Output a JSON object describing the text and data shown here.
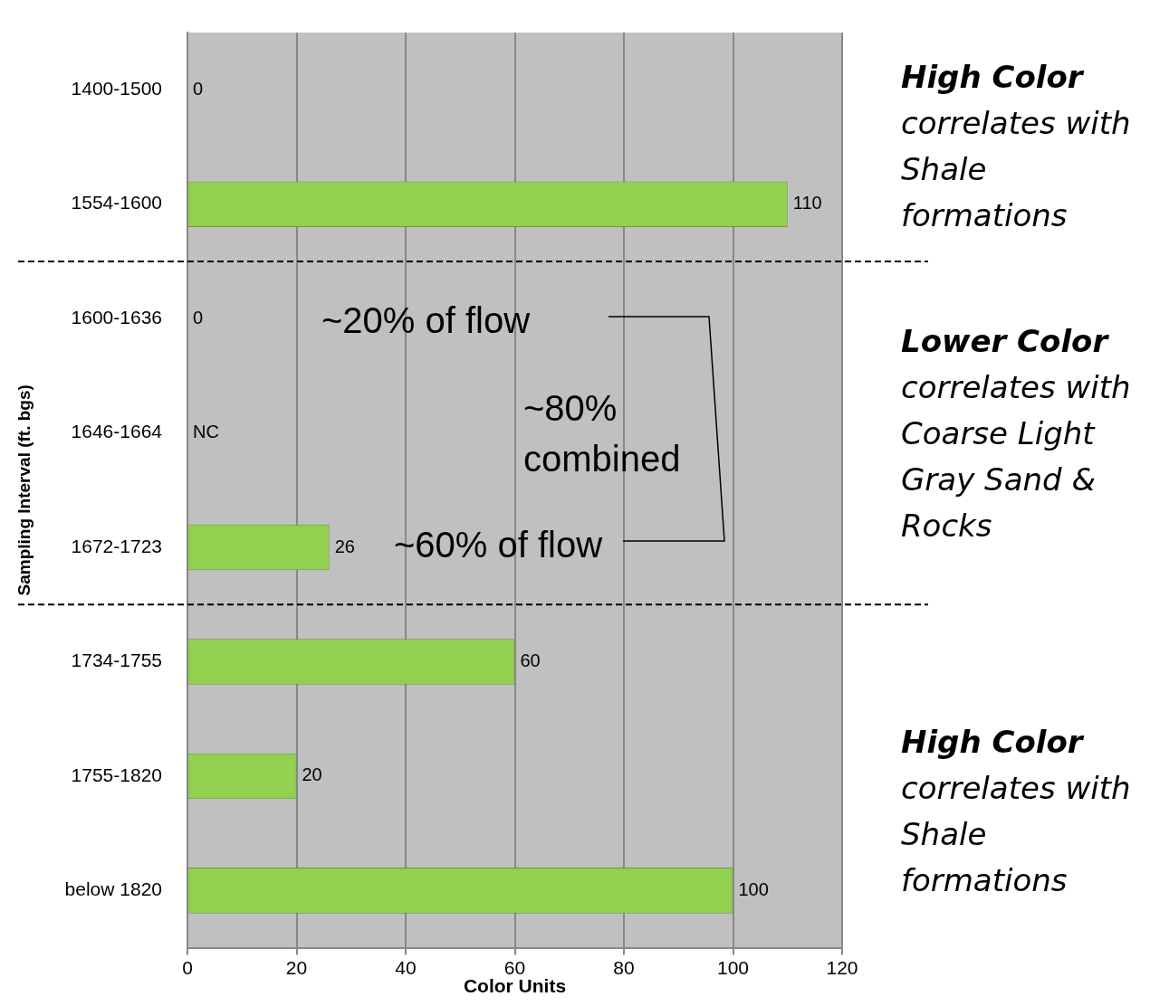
{
  "chart_data": {
    "type": "bar",
    "orientation": "horizontal",
    "xlabel": "Color Units",
    "ylabel": "Sampling Interval (ft. bgs)",
    "categories": [
      "1400-1500",
      "1554-1600",
      "1600-1636",
      "1646-1664",
      "1672-1723",
      "1734-1755",
      "1755-1820",
      "below 1820"
    ],
    "values": [
      0,
      110,
      0,
      null,
      26,
      60,
      20,
      100
    ],
    "value_labels": [
      "0",
      "110",
      "0",
      "NC",
      "26",
      "60",
      "20",
      "100"
    ],
    "color": "#92d050",
    "xlim": [
      0,
      120
    ],
    "xticks": [
      0,
      20,
      40,
      60,
      80,
      100,
      120
    ],
    "grid": "x",
    "legend": false,
    "annotations": [
      "~20% of flow",
      "~80%\ncombined",
      "~60% of flow",
      "High Color\ncorrelates with\nShale\nformations",
      "Lower Color\ncorrelates with\nCoarse Light\nGray Sand &\nRocks",
      "High Color\ncorrelates with\nShale\nformations"
    ]
  }
}
